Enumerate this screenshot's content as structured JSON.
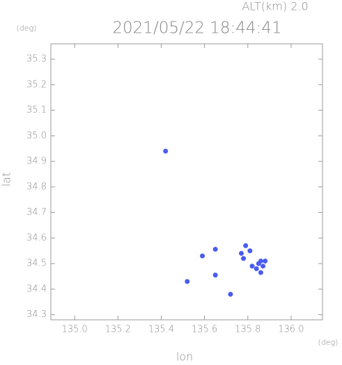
{
  "chart_data": {
    "type": "scatter",
    "title": "2021/05/22 18:44:41",
    "subtitle": "ALT(km) 2.0",
    "x_label": "lon",
    "y_label": "lat",
    "x_unit": "(deg)",
    "y_unit": "(deg)",
    "color": "#4a5cf0",
    "xlim": [
      134.89,
      136.145
    ],
    "ylim": [
      34.28,
      35.36
    ],
    "xticks": [
      {
        "value": 135,
        "label": "135.0"
      },
      135.2,
      135.4,
      135.6,
      135.8,
      {
        "value": 136,
        "label": "136.0"
      }
    ],
    "yticks": [
      34.3,
      34.4,
      34.5,
      34.6,
      34.7,
      34.8,
      34.9,
      {
        "value": 35,
        "label": "35.0"
      },
      35.1,
      35.2,
      35.3
    ],
    "x": [
      135.42,
      135.52,
      135.65,
      135.59,
      135.65,
      135.72,
      135.77,
      135.78,
      135.85,
      135.86,
      135.87,
      135.84,
      135.82,
      135.86,
      135.81,
      135.79,
      135.88
    ],
    "y": [
      34.94,
      34.43,
      34.455,
      34.53,
      34.556,
      34.38,
      34.54,
      34.52,
      34.5,
      34.51,
      34.49,
      34.48,
      34.49,
      34.465,
      34.55,
      34.57,
      34.51
    ]
  }
}
